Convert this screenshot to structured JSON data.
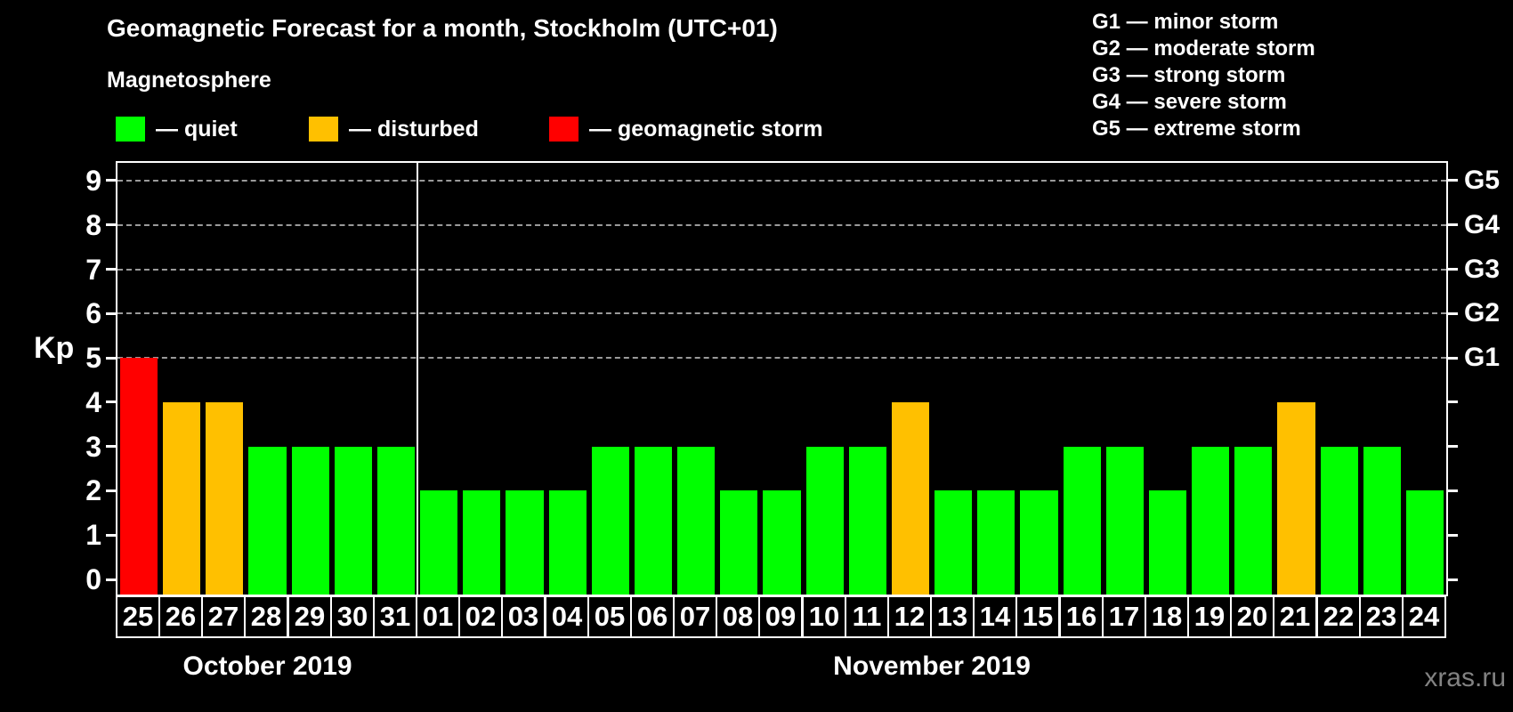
{
  "title": "Geomagnetic Forecast for a month, Stockholm (UTC+01)",
  "subtitle": "Magnetosphere",
  "legend": {
    "items": [
      {
        "name": "quiet",
        "label": "— quiet",
        "color": "#00FF00"
      },
      {
        "name": "disturbed",
        "label": "— disturbed",
        "color": "#FFC000"
      },
      {
        "name": "storm",
        "label": "— geomagnetic storm",
        "color": "#FF0000"
      }
    ]
  },
  "g_legend": [
    "G1 — minor storm",
    "G2 — moderate storm",
    "G3 — strong storm",
    "G4 — severe storm",
    "G5 — extreme storm"
  ],
  "watermark": "xras.ru",
  "chart_data": {
    "type": "bar",
    "title": "Geomagnetic Forecast for a month, Stockholm (UTC+01)",
    "ylabel": "Kp",
    "ylim": [
      0,
      9.4
    ],
    "y_ticks": [
      0,
      1,
      2,
      3,
      4,
      5,
      6,
      7,
      8,
      9
    ],
    "gridlines_at": [
      5,
      6,
      7,
      8,
      9
    ],
    "grid": "dashed horizontal at Kp 5-9 only",
    "right_axis_labels": [
      {
        "kp": 5,
        "label": "G1"
      },
      {
        "kp": 6,
        "label": "G2"
      },
      {
        "kp": 7,
        "label": "G3"
      },
      {
        "kp": 8,
        "label": "G4"
      },
      {
        "kp": 9,
        "label": "G5"
      }
    ],
    "status_colors": {
      "quiet": "#00FF00",
      "disturbed": "#FFC000",
      "storm": "#FF0000"
    },
    "months": [
      {
        "name": "October 2019",
        "points": [
          {
            "day": "25",
            "kp": 5,
            "status": "storm"
          },
          {
            "day": "26",
            "kp": 4,
            "status": "disturbed"
          },
          {
            "day": "27",
            "kp": 4,
            "status": "disturbed"
          },
          {
            "day": "28",
            "kp": 3,
            "status": "quiet"
          },
          {
            "day": "29",
            "kp": 3,
            "status": "quiet"
          },
          {
            "day": "30",
            "kp": 3,
            "status": "quiet"
          },
          {
            "day": "31",
            "kp": 3,
            "status": "quiet"
          }
        ]
      },
      {
        "name": "November 2019",
        "points": [
          {
            "day": "01",
            "kp": 2,
            "status": "quiet"
          },
          {
            "day": "02",
            "kp": 2,
            "status": "quiet"
          },
          {
            "day": "03",
            "kp": 2,
            "status": "quiet"
          },
          {
            "day": "04",
            "kp": 2,
            "status": "quiet"
          },
          {
            "day": "05",
            "kp": 3,
            "status": "quiet"
          },
          {
            "day": "06",
            "kp": 3,
            "status": "quiet"
          },
          {
            "day": "07",
            "kp": 3,
            "status": "quiet"
          },
          {
            "day": "08",
            "kp": 2,
            "status": "quiet"
          },
          {
            "day": "09",
            "kp": 2,
            "status": "quiet"
          },
          {
            "day": "10",
            "kp": 3,
            "status": "quiet"
          },
          {
            "day": "11",
            "kp": 3,
            "status": "quiet"
          },
          {
            "day": "12",
            "kp": 4,
            "status": "disturbed"
          },
          {
            "day": "13",
            "kp": 2,
            "status": "quiet"
          },
          {
            "day": "14",
            "kp": 2,
            "status": "quiet"
          },
          {
            "day": "15",
            "kp": 2,
            "status": "quiet"
          },
          {
            "day": "16",
            "kp": 3,
            "status": "quiet"
          },
          {
            "day": "17",
            "kp": 3,
            "status": "quiet"
          },
          {
            "day": "18",
            "kp": 2,
            "status": "quiet"
          },
          {
            "day": "19",
            "kp": 3,
            "status": "quiet"
          },
          {
            "day": "20",
            "kp": 3,
            "status": "quiet"
          },
          {
            "day": "21",
            "kp": 4,
            "status": "disturbed"
          },
          {
            "day": "22",
            "kp": 3,
            "status": "quiet"
          },
          {
            "day": "23",
            "kp": 3,
            "status": "quiet"
          },
          {
            "day": "24",
            "kp": 2,
            "status": "quiet"
          }
        ]
      }
    ]
  }
}
